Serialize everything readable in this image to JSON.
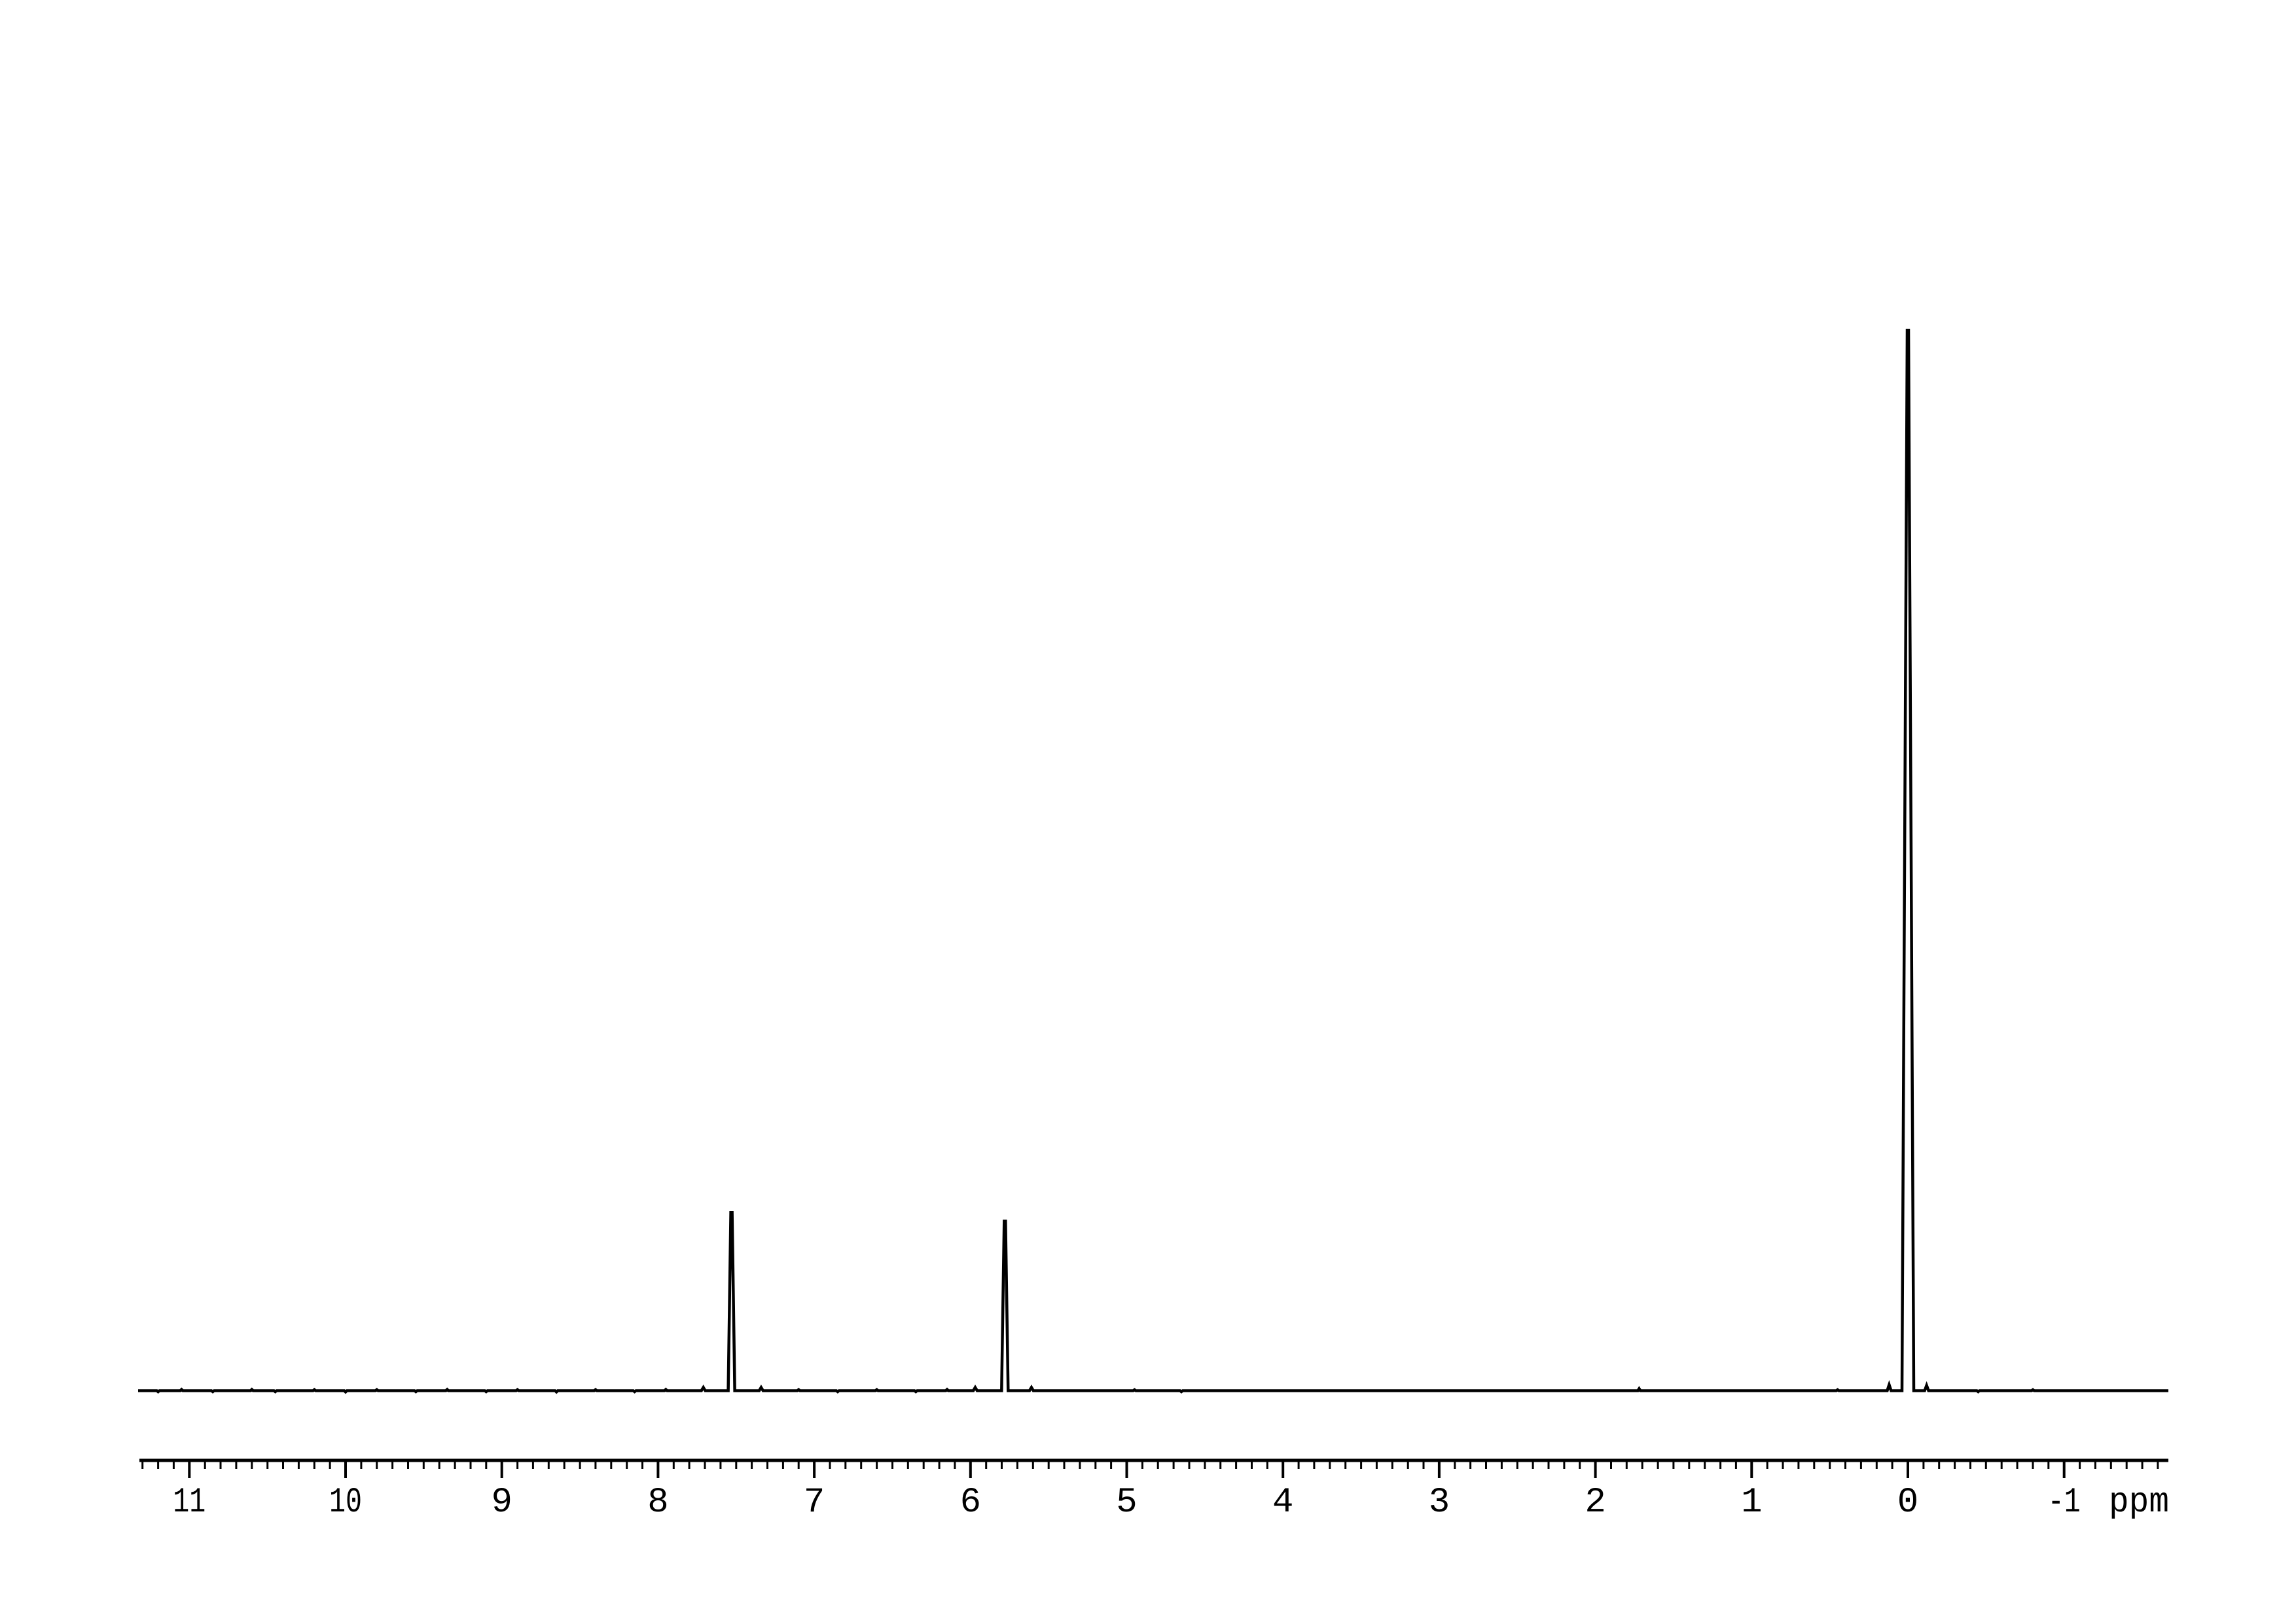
{
  "chart_data": {
    "type": "line",
    "chart_kind": "1H NMR spectrum",
    "background_color": "#ffffff",
    "trace_color": "#000000",
    "x_axis": {
      "unit": "ppm",
      "direction": "decreasing-left-to-right",
      "range_ppm": [
        11.32,
        -1.67
      ],
      "major_ticks": [
        11,
        10,
        9,
        8,
        7,
        6,
        5,
        4,
        3,
        2,
        1,
        0,
        -1
      ],
      "major_tick_labels": [
        "11",
        "10",
        "9",
        "8",
        "7",
        "6",
        "5",
        "4",
        "3",
        "2",
        "1",
        "0",
        "-1"
      ],
      "minor_tick_step": 0.1,
      "grid": "off"
    },
    "y_axis": {
      "shown": false,
      "baseline_intensity": 0,
      "max_intensity": 1.0
    },
    "legend": "none",
    "peaks": [
      {
        "ppm": 7.53,
        "intensity": 0.168
      },
      {
        "ppm": 5.78,
        "intensity": 0.16
      },
      {
        "ppm": 0.0,
        "intensity": 1.0
      }
    ],
    "satellite_peaks": [
      {
        "ppm": 7.71,
        "intensity": 0.0031
      },
      {
        "ppm": 7.34,
        "intensity": 0.0031
      },
      {
        "ppm": 5.97,
        "intensity": 0.0031
      },
      {
        "ppm": 5.61,
        "intensity": 0.0031
      },
      {
        "ppm": 0.12,
        "intensity": 0.0056
      },
      {
        "ppm": -0.12,
        "intensity": 0.005
      }
    ],
    "noise_blips": [
      {
        "ppm": 11.2,
        "amp": -0.001
      },
      {
        "ppm": 11.05,
        "amp": 0.0012
      },
      {
        "ppm": 10.85,
        "amp": -0.0009
      },
      {
        "ppm": 10.6,
        "amp": 0.0012
      },
      {
        "ppm": 10.45,
        "amp": -0.0009
      },
      {
        "ppm": 10.2,
        "amp": 0.001
      },
      {
        "ppm": 10.0,
        "amp": -0.0012
      },
      {
        "ppm": 9.8,
        "amp": 0.001
      },
      {
        "ppm": 9.55,
        "amp": -0.0009
      },
      {
        "ppm": 9.35,
        "amp": 0.0012
      },
      {
        "ppm": 9.1,
        "amp": -0.0009
      },
      {
        "ppm": 8.9,
        "amp": 0.001
      },
      {
        "ppm": 8.65,
        "amp": -0.0012
      },
      {
        "ppm": 8.4,
        "amp": 0.001
      },
      {
        "ppm": 8.15,
        "amp": -0.0009
      },
      {
        "ppm": 7.95,
        "amp": 0.0012
      },
      {
        "ppm": 7.1,
        "amp": 0.001
      },
      {
        "ppm": 6.85,
        "amp": -0.0009
      },
      {
        "ppm": 6.6,
        "amp": 0.001
      },
      {
        "ppm": 6.35,
        "amp": -0.0009
      },
      {
        "ppm": 6.15,
        "amp": 0.0012
      },
      {
        "ppm": 4.95,
        "amp": 0.0009
      },
      {
        "ppm": 4.65,
        "amp": -0.0009
      },
      {
        "ppm": 1.72,
        "amp": 0.0019
      },
      {
        "ppm": 0.45,
        "amp": 0.0009
      },
      {
        "ppm": -0.45,
        "amp": -0.0009
      },
      {
        "ppm": -0.8,
        "amp": 0.0009
      }
    ]
  }
}
